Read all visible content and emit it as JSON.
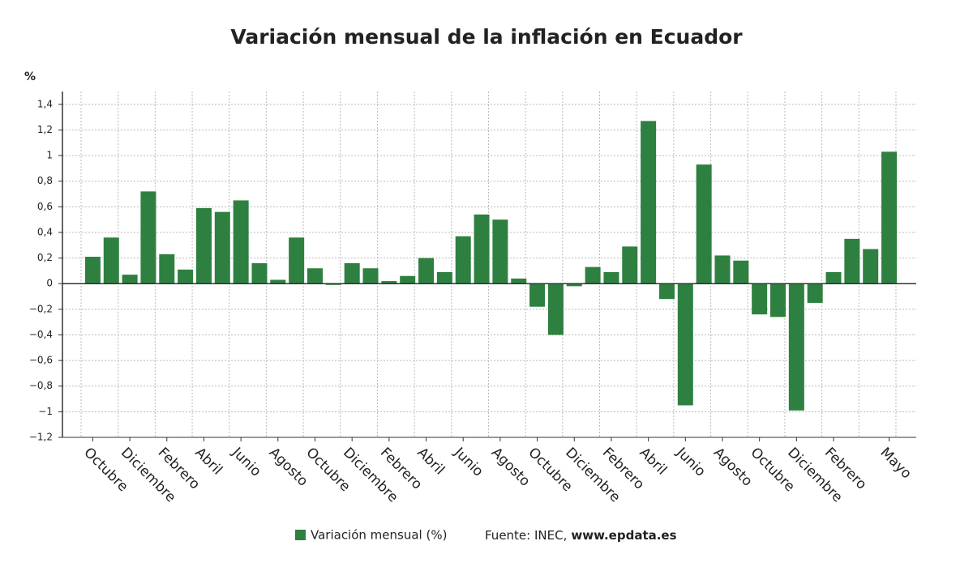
{
  "chart_data": {
    "type": "bar",
    "title": "Variación mensual de la inflación en Ecuador",
    "y_label": "%",
    "categories": [
      "Octubre",
      null,
      "Diciembre",
      null,
      "Febrero",
      null,
      "Abril",
      null,
      "Junio",
      null,
      "Agosto",
      null,
      "Octubre",
      null,
      "Diciembre",
      null,
      "Febrero",
      null,
      "Abril",
      null,
      "Junio",
      null,
      "Agosto",
      null,
      "Octubre",
      null,
      "Diciembre",
      null,
      "Febrero",
      null,
      "Abril",
      null,
      "Junio",
      null,
      "Agosto",
      null,
      "Octubre",
      null,
      "Diciembre",
      null,
      "Febrero",
      null,
      null,
      "Mayo"
    ],
    "series": [
      {
        "name": "Variación mensual (%)",
        "color": "#2e8040",
        "values": [
          0.21,
          0.36,
          0.07,
          0.72,
          0.23,
          0.11,
          0.59,
          0.56,
          0.65,
          0.16,
          0.03,
          0.36,
          0.12,
          -0.01,
          0.16,
          0.12,
          0.02,
          0.06,
          0.2,
          0.09,
          0.37,
          0.54,
          0.5,
          0.04,
          -0.18,
          -0.4,
          -0.02,
          0.13,
          0.09,
          0.29,
          1.27,
          -0.12,
          -0.95,
          0.93,
          0.22,
          0.18,
          -0.24,
          -0.26,
          -0.99,
          -0.15,
          0.09,
          0.35,
          0.27,
          1.03
        ]
      }
    ],
    "ylim": [
      -1.2,
      1.5
    ],
    "yticks": [
      {
        "value": -1.2,
        "label": "−1,2"
      },
      {
        "value": -1,
        "label": "−1"
      },
      {
        "value": -0.8,
        "label": "−0,8"
      },
      {
        "value": -0.6,
        "label": "−0,6"
      },
      {
        "value": -0.4,
        "label": "−0,4"
      },
      {
        "value": -0.2,
        "label": "−0,2"
      },
      0,
      {
        "value": 0.2,
        "label": "0,2"
      },
      {
        "value": 0.4,
        "label": "0,4"
      },
      {
        "value": 0.6,
        "label": "0,6"
      },
      {
        "value": 0.8,
        "label": "0,8"
      },
      1,
      {
        "value": 1.2,
        "label": "1,2"
      },
      {
        "value": 1.4,
        "label": "1,4"
      }
    ],
    "grid": true,
    "source_label": "Fuente: INEC,",
    "source_site": "www.epdata.es"
  }
}
